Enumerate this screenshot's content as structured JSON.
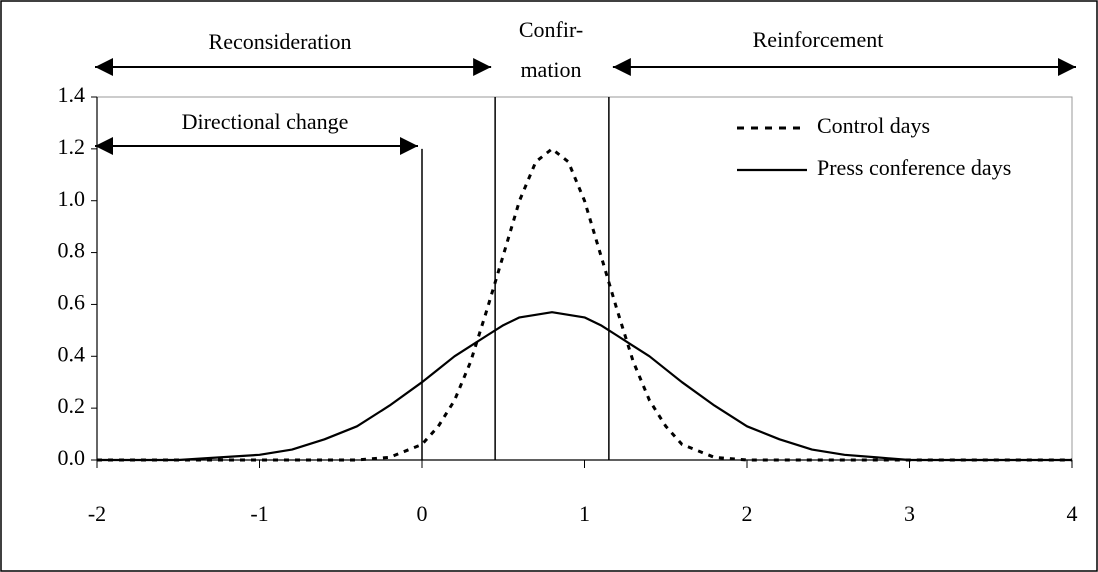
{
  "chart_data": {
    "type": "line",
    "x": [
      -2,
      -1.5,
      -1,
      -0.8,
      -0.6,
      -0.4,
      -0.2,
      0,
      0.1,
      0.2,
      0.3,
      0.4,
      0.5,
      0.6,
      0.7,
      0.8,
      0.9,
      1.0,
      1.1,
      1.2,
      1.3,
      1.4,
      1.5,
      1.6,
      1.8,
      2.0,
      2.2,
      2.4,
      2.6,
      2.8,
      3.0,
      3.5,
      4
    ],
    "series": [
      {
        "name": "Control days",
        "color": "#000000",
        "dash": true,
        "values": [
          0,
          0,
          0,
          0,
          0,
          0,
          0.01,
          0.06,
          0.13,
          0.23,
          0.38,
          0.58,
          0.79,
          1.0,
          1.15,
          1.2,
          1.15,
          1.0,
          0.79,
          0.58,
          0.38,
          0.23,
          0.13,
          0.06,
          0.01,
          0,
          0,
          0,
          0,
          0,
          0,
          0,
          0
        ]
      },
      {
        "name": "Press conference days",
        "color": "#000000",
        "dash": false,
        "values": [
          0,
          0,
          0.02,
          0.04,
          0.08,
          0.13,
          0.21,
          0.3,
          0.35,
          0.4,
          0.44,
          0.48,
          0.52,
          0.55,
          0.56,
          0.57,
          0.56,
          0.55,
          0.52,
          0.48,
          0.44,
          0.4,
          0.35,
          0.3,
          0.21,
          0.13,
          0.08,
          0.04,
          0.02,
          0.01,
          0,
          0,
          0
        ]
      }
    ],
    "xlim": [
      -2,
      4
    ],
    "xticks": [
      -2,
      -1,
      0,
      1,
      2,
      3,
      4
    ],
    "ylim": [
      0,
      1.4
    ],
    "yticks": [
      {
        "value": 0,
        "label": "0.0"
      },
      0.2,
      0.4,
      0.6,
      0.8,
      {
        "value": 1,
        "label": "1.0"
      },
      1.2,
      1.4
    ],
    "vlines": [
      {
        "x": 0,
        "y": 1.2
      },
      {
        "x": 0.45,
        "y": 1.4
      },
      {
        "x": 1.15,
        "y": 1.4
      }
    ],
    "annotations": {
      "reconsideration": "Reconsideration",
      "confirmation_1": "Confir-",
      "confirmation_2": "mation",
      "reinforcement": "Reinforcement",
      "directional_change": "Directional change"
    },
    "legend": "upper right",
    "grid": false
  }
}
